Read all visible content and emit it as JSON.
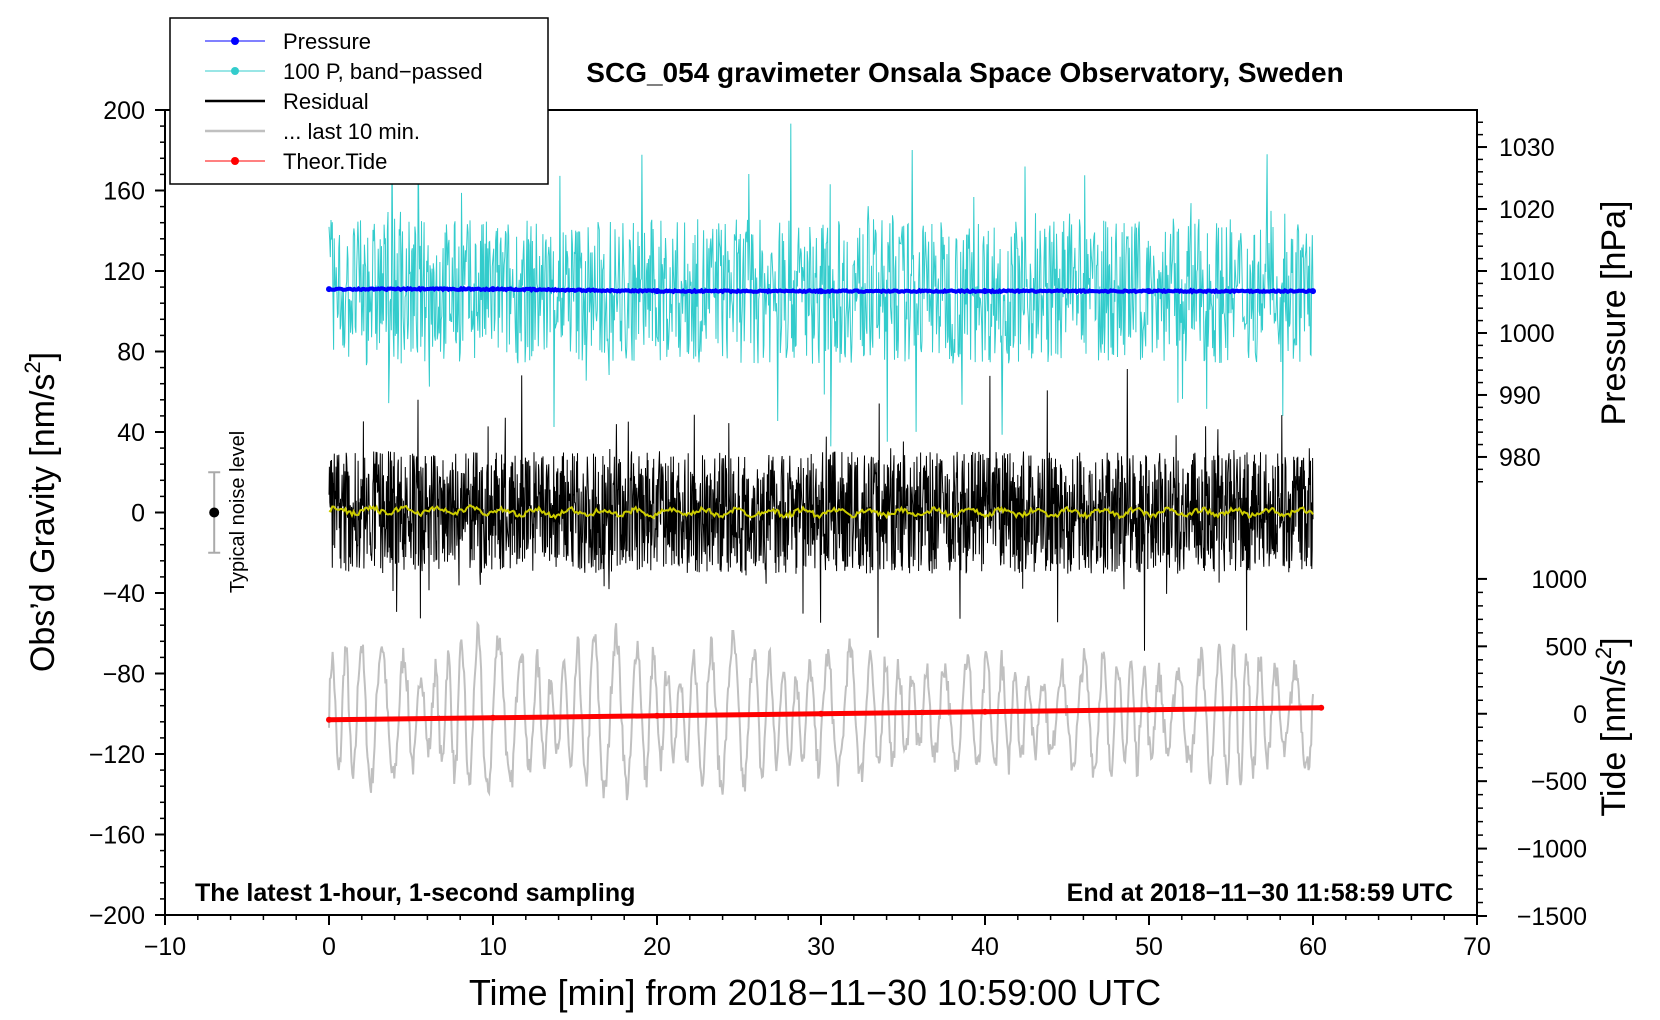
{
  "chart_data": {
    "type": "line",
    "title": "SCG_054 gravimeter Onsala Space Observatory, Sweden",
    "xlabel": "Time [min] from 2018−11−30 10:59:00 UTC",
    "ylabel_left": "Obs’d Gravity [nm/s",
    "ylabel_left_sup": "2",
    "ylabel_left_close": "]",
    "ylabel_right_pressure": "Pressure [hPa]",
    "ylabel_right_tide": "Tide [nm/s",
    "ylabel_right_tide_sup": "2",
    "ylabel_right_tide_close": "]",
    "xlim": [
      -10,
      70
    ],
    "ylim": [
      -200,
      200
    ],
    "x_ticks": [
      "−10",
      "0",
      "10",
      "20",
      "30",
      "40",
      "50",
      "60",
      "70"
    ],
    "y_ticks": [
      "200",
      "160",
      "120",
      "80",
      "40",
      "0",
      "−40",
      "−80",
      "−120",
      "−160",
      "−200"
    ],
    "pressure_ticks": [
      "1030",
      "1020",
      "1010",
      "1000",
      "990",
      "980"
    ],
    "tide_ticks": [
      "1000",
      "500",
      "0",
      "−500",
      "−1000",
      "−1500"
    ],
    "pressure_axis": {
      "ref_hpa": 1010,
      "ref_gravity": 120,
      "scale_gravity_per_hpa": 3.08
    },
    "tide_axis": {
      "ref_tide": 0,
      "ref_gravity": -100,
      "scale_gravity_per_unit": 0.067
    },
    "legend": {
      "position": "top-left",
      "entries": [
        "Pressure",
        "100 P, band−passed",
        "Residual",
        "... last 10 min.",
        "Theor.Tide"
      ]
    },
    "colors": {
      "pressure": "#0000ff",
      "bandpassed": "#33cccc",
      "residual": "#000000",
      "last10": "#c0c0c0",
      "tide": "#ff0000",
      "smoothed": "#cccc00",
      "noise": "#aaaaaa"
    },
    "series": [
      {
        "name": "Pressure",
        "x": [
          0,
          10,
          20,
          30,
          40,
          50,
          60
        ],
        "values": [
          111,
          111,
          110,
          110,
          110,
          110,
          110
        ]
      },
      {
        "name": "100 P, band−passed",
        "x": [
          0,
          60
        ],
        "values": [
          110,
          110
        ],
        "amplitude": 40
      },
      {
        "name": "Residual",
        "x": [
          0,
          60
        ],
        "values": [
          0,
          0
        ],
        "amplitude": 38
      },
      {
        "name": "... last 10 min.",
        "x": [
          0,
          60
        ],
        "values": [
          -100,
          -100
        ],
        "amplitude": 40
      },
      {
        "name": "Theor.Tide",
        "x": [
          0,
          10,
          20,
          30,
          40,
          50,
          60.5
        ],
        "values": [
          -103,
          -102,
          -101,
          -100,
          -99,
          -98,
          -97
        ]
      }
    ],
    "noise_marker": {
      "x": -7,
      "value": 0,
      "range": [
        -20,
        20
      ],
      "label": "Typical noise level"
    },
    "annotations": {
      "bottom_left": "The latest 1-hour, 1-second sampling",
      "bottom_right": "End at 2018−11−30 11:58:59 UTC"
    }
  }
}
